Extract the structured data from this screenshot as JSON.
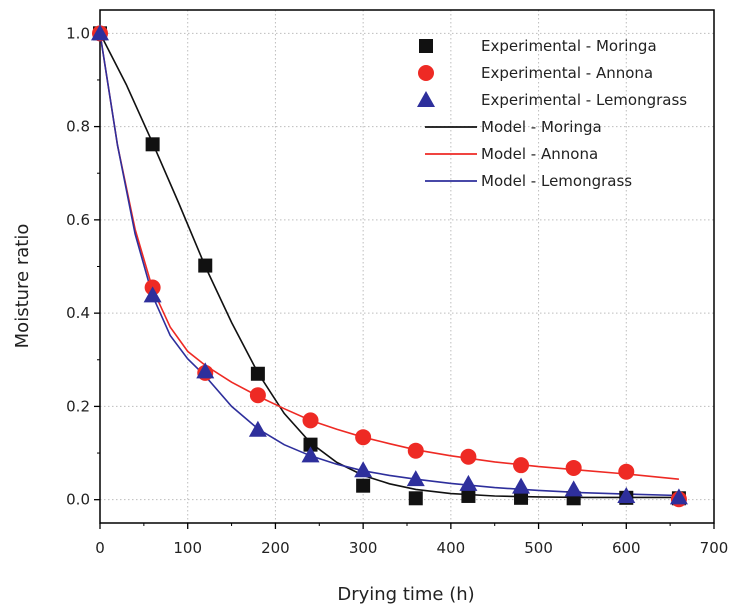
{
  "chart_data": {
    "type": "scatter",
    "xlabel": "Drying time (h)",
    "ylabel": "Moisture ratio",
    "xlim": [
      0,
      700
    ],
    "ylim": [
      -0.05,
      1.05
    ],
    "xticks": [
      0,
      100,
      200,
      300,
      400,
      500,
      600,
      700
    ],
    "yticks": [
      0.0,
      0.2,
      0.4,
      0.6,
      0.8,
      1.0
    ],
    "grid": true,
    "legend_position": "top-right",
    "colors": {
      "moringa": "#111111",
      "annona": "#ee2a24",
      "lemongrass": "#2e2f9c",
      "axis": "#000000",
      "grid": "#bdbdbd"
    },
    "series": [
      {
        "name": "Experimental - Moringa",
        "kind": "markers",
        "marker": "square",
        "color_key": "moringa",
        "x": [
          0,
          60,
          120,
          180,
          240,
          300,
          360,
          420,
          480,
          540,
          600,
          660
        ],
        "y": [
          1.0,
          0.762,
          0.502,
          0.27,
          0.118,
          0.03,
          0.003,
          0.008,
          0.004,
          0.003,
          0.004,
          0.003
        ]
      },
      {
        "name": "Experimental - Annona",
        "kind": "markers",
        "marker": "circle",
        "color_key": "annona",
        "x": [
          0,
          60,
          120,
          180,
          240,
          300,
          360,
          420,
          480,
          540,
          600,
          660
        ],
        "y": [
          1.0,
          0.455,
          0.272,
          0.224,
          0.17,
          0.134,
          0.105,
          0.092,
          0.074,
          0.068,
          0.06,
          0.001
        ]
      },
      {
        "name": "Experimental - Lemongrass",
        "kind": "markers",
        "marker": "triangle",
        "color_key": "lemongrass",
        "x": [
          0,
          60,
          120,
          180,
          240,
          300,
          360,
          420,
          480,
          540,
          600,
          660
        ],
        "y": [
          1.0,
          0.438,
          0.275,
          0.15,
          0.095,
          0.063,
          0.044,
          0.034,
          0.028,
          0.022,
          0.008,
          0.005
        ]
      },
      {
        "name": "Model - Moringa",
        "kind": "line",
        "color_key": "moringa",
        "x": [
          0,
          30,
          60,
          90,
          120,
          150,
          180,
          210,
          240,
          270,
          300,
          330,
          360,
          400,
          450,
          500,
          550,
          600,
          660
        ],
        "y": [
          1.0,
          0.89,
          0.765,
          0.635,
          0.5,
          0.38,
          0.272,
          0.185,
          0.122,
          0.08,
          0.052,
          0.034,
          0.022,
          0.013,
          0.008,
          0.006,
          0.005,
          0.005,
          0.005
        ]
      },
      {
        "name": "Model - Annona",
        "kind": "line",
        "color_key": "annona",
        "x": [
          0,
          20,
          40,
          60,
          80,
          100,
          120,
          150,
          180,
          210,
          240,
          270,
          300,
          330,
          360,
          400,
          450,
          500,
          550,
          600,
          660
        ],
        "y": [
          1.0,
          0.76,
          0.58,
          0.452,
          0.37,
          0.318,
          0.288,
          0.252,
          0.222,
          0.195,
          0.17,
          0.151,
          0.134,
          0.12,
          0.107,
          0.094,
          0.081,
          0.071,
          0.063,
          0.055,
          0.044
        ]
      },
      {
        "name": "Model - Lemongrass",
        "kind": "line",
        "color_key": "lemongrass",
        "x": [
          0,
          20,
          40,
          60,
          80,
          100,
          120,
          150,
          180,
          210,
          240,
          270,
          300,
          330,
          360,
          400,
          450,
          500,
          550,
          600,
          660
        ],
        "y": [
          1.0,
          0.76,
          0.57,
          0.437,
          0.352,
          0.302,
          0.265,
          0.2,
          0.152,
          0.118,
          0.094,
          0.076,
          0.062,
          0.052,
          0.044,
          0.035,
          0.026,
          0.02,
          0.015,
          0.012,
          0.009
        ]
      }
    ]
  }
}
